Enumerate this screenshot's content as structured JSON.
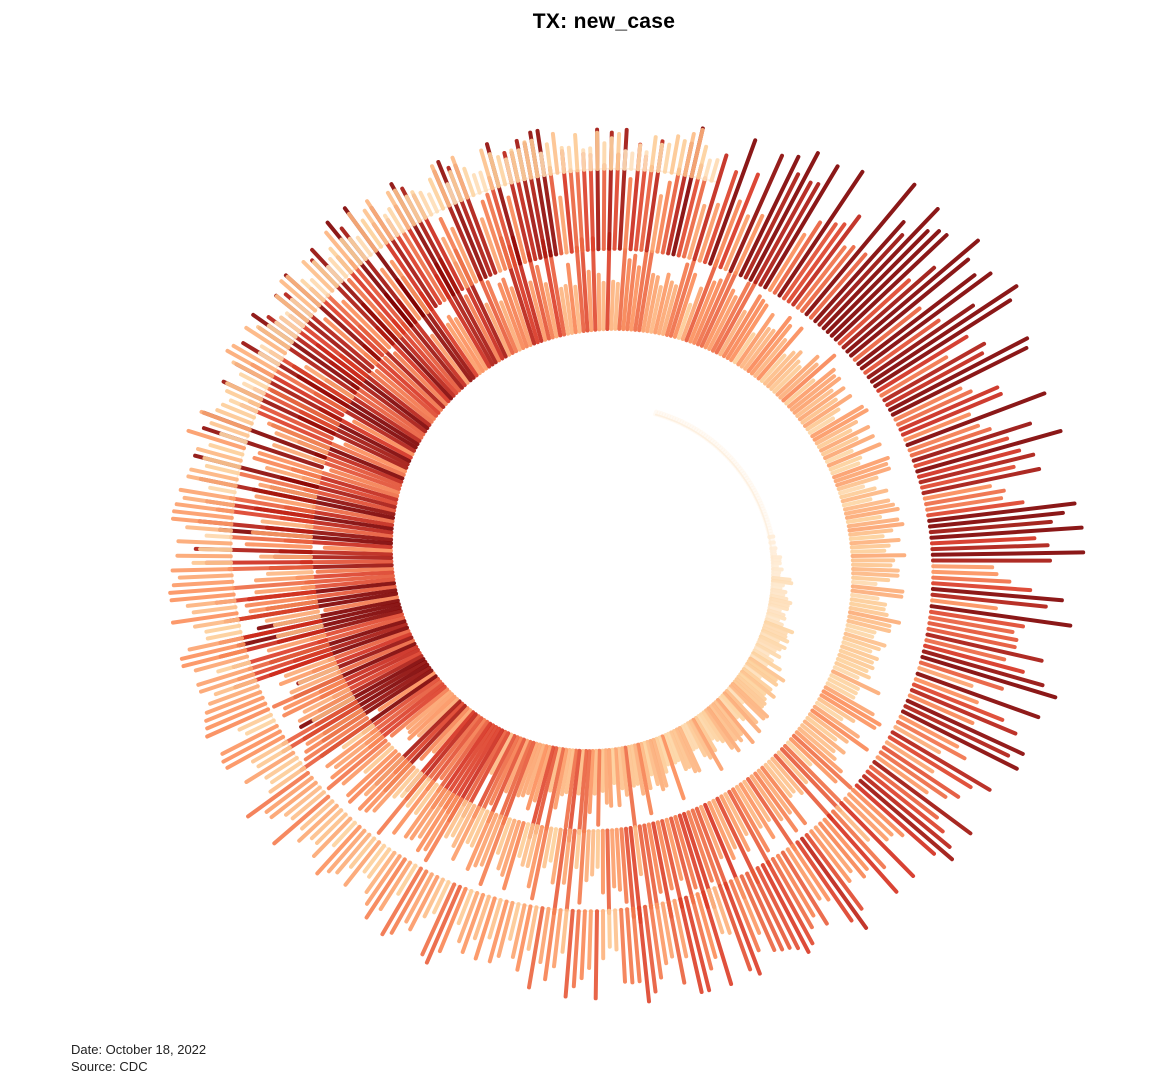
{
  "chart_data": {
    "type": "spiral-radial-bar",
    "title": "TX: new_case",
    "date_caption": "Date: October 18, 2022",
    "source_caption": "Source: CDC",
    "series": [
      {
        "name": "new_case",
        "period_days": 365,
        "turns": 3,
        "weekly_values": [
          0,
          0,
          0,
          0,
          0,
          0,
          0,
          0,
          0,
          100,
          250,
          450,
          550,
          700,
          800,
          1000,
          1150,
          1300,
          1450,
          1550,
          1600,
          1750,
          1900,
          2050,
          2200,
          2300,
          2450,
          2600,
          2750,
          2950,
          3200,
          3450,
          3700,
          3900,
          4050,
          4200,
          4150,
          4050,
          3950,
          3850,
          3700,
          3550,
          3350,
          3200,
          3050,
          2900,
          2750,
          2600,
          2450,
          2300,
          2200,
          2150,
          2050,
          1950,
          1850,
          1750,
          1650,
          1550,
          1450,
          1400,
          1350,
          1300,
          1250,
          1250,
          1300,
          1400,
          1550,
          1700,
          1900,
          2100,
          2300,
          2450,
          2500,
          2450,
          2300,
          2150,
          2000,
          1850,
          1750,
          1700,
          1700,
          1750,
          1900,
          2100,
          2300,
          2450,
          2550,
          2650,
          2750,
          2900,
          3050,
          3150,
          3250,
          3300,
          3350,
          3300,
          3250,
          3200,
          3150,
          3100,
          3050,
          3000,
          3000,
          3100,
          3300,
          3550,
          3800,
          4050,
          4300,
          4450,
          4400,
          4300,
          4100,
          3900,
          3700,
          3500,
          3350,
          3250,
          3100,
          3000,
          2900,
          2800,
          2700,
          2600,
          2500,
          2400,
          2300,
          2200,
          2150,
          2100,
          2050,
          2000,
          1950,
          1900,
          1850,
          1800,
          1750,
          1700,
          1650,
          1600,
          1550,
          1500,
          1450,
          1400,
          1350,
          1300,
          1250,
          1200,
          1150,
          1100,
          1050,
          1000,
          950,
          900,
          900,
          1200
        ],
        "scale_max": 4500
      }
    ],
    "color_scale": {
      "low": "#fff1e0",
      "mid_low": "#fdd09a",
      "mid": "#fc8d59",
      "high": "#d7301f",
      "max": "#7f0000"
    },
    "center": {
      "x": 602,
      "y": 560
    }
  }
}
